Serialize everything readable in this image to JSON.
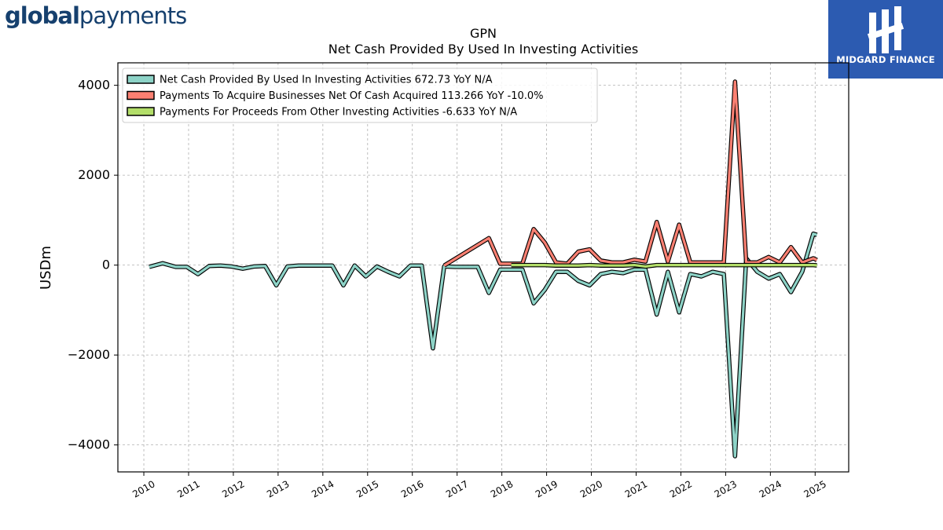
{
  "branding": {
    "left_logo_bold": "global",
    "left_logo_light": "payments",
    "right_logo_text": "MIDGARD FINANCE",
    "right_logo_icon": "midgard-finance-logo-icon"
  },
  "chart_data": {
    "type": "line",
    "title": "GPN",
    "subtitle": "Net Cash Provided By Used In Investing Activities",
    "ylabel": "USDm",
    "xlabel": "",
    "ylim": [
      -4600,
      4500
    ],
    "xlim": [
      2009.42,
      2025.75
    ],
    "yticks": [
      -4000,
      -2000,
      0,
      2000,
      4000
    ],
    "xticks": [
      2010,
      2011,
      2012,
      2013,
      2014,
      2015,
      2016,
      2017,
      2018,
      2019,
      2020,
      2021,
      2022,
      2023,
      2024,
      2025
    ],
    "grid": true,
    "legend_position": "top-left",
    "series": [
      {
        "name": "Net Cash Provided By Used In Investing Activities  672.73 YoY N/A",
        "color": "#8dd3c7",
        "points": [
          [
            2010.12,
            -40
          ],
          [
            2010.42,
            40
          ],
          [
            2010.71,
            -40
          ],
          [
            2010.96,
            -40
          ],
          [
            2011.21,
            -200
          ],
          [
            2011.46,
            -20
          ],
          [
            2011.71,
            -10
          ],
          [
            2011.96,
            -30
          ],
          [
            2012.21,
            -80
          ],
          [
            2012.46,
            -30
          ],
          [
            2012.71,
            -20
          ],
          [
            2012.96,
            -450
          ],
          [
            2013.21,
            -30
          ],
          [
            2013.46,
            -10
          ],
          [
            2013.71,
            -10
          ],
          [
            2013.96,
            -10
          ],
          [
            2014.21,
            -10
          ],
          [
            2014.46,
            -450
          ],
          [
            2014.71,
            -10
          ],
          [
            2014.96,
            -250
          ],
          [
            2015.21,
            -30
          ],
          [
            2015.46,
            -150
          ],
          [
            2015.71,
            -250
          ],
          [
            2015.96,
            -10
          ],
          [
            2016.21,
            -10
          ],
          [
            2016.46,
            -1850
          ],
          [
            2016.71,
            -30
          ],
          [
            2016.96,
            -40
          ],
          [
            2017.21,
            -40
          ],
          [
            2017.46,
            -40
          ],
          [
            2017.71,
            -620
          ],
          [
            2017.96,
            -100
          ],
          [
            2018.21,
            -100
          ],
          [
            2018.46,
            -100
          ],
          [
            2018.71,
            -850
          ],
          [
            2018.96,
            -550
          ],
          [
            2019.21,
            -150
          ],
          [
            2019.46,
            -150
          ],
          [
            2019.71,
            -350
          ],
          [
            2019.96,
            -450
          ],
          [
            2020.21,
            -200
          ],
          [
            2020.46,
            -150
          ],
          [
            2020.71,
            -180
          ],
          [
            2020.96,
            -100
          ],
          [
            2021.21,
            -100
          ],
          [
            2021.46,
            -1100
          ],
          [
            2021.71,
            -150
          ],
          [
            2021.96,
            -1050
          ],
          [
            2022.21,
            -200
          ],
          [
            2022.46,
            -250
          ],
          [
            2022.71,
            -150
          ],
          [
            2022.96,
            -200
          ],
          [
            2023.21,
            -4250
          ],
          [
            2023.46,
            150
          ],
          [
            2023.71,
            -150
          ],
          [
            2023.96,
            -300
          ],
          [
            2024.21,
            -200
          ],
          [
            2024.46,
            -600
          ],
          [
            2024.71,
            -150
          ],
          [
            2024.96,
            700
          ],
          [
            2025.04,
            673
          ]
        ]
      },
      {
        "name": "Payments To Acquire Businesses Net Of Cash Acquired  113.266 YoY -10.0%",
        "color": "#fb8072",
        "points": [
          [
            2016.71,
            -10
          ],
          [
            2017.71,
            600
          ],
          [
            2017.96,
            30
          ],
          [
            2018.21,
            30
          ],
          [
            2018.46,
            30
          ],
          [
            2018.71,
            800
          ],
          [
            2018.96,
            500
          ],
          [
            2019.21,
            60
          ],
          [
            2019.46,
            30
          ],
          [
            2019.71,
            300
          ],
          [
            2019.96,
            350
          ],
          [
            2020.21,
            100
          ],
          [
            2020.46,
            60
          ],
          [
            2020.71,
            60
          ],
          [
            2020.96,
            120
          ],
          [
            2021.21,
            80
          ],
          [
            2021.46,
            960
          ],
          [
            2021.71,
            80
          ],
          [
            2021.96,
            900
          ],
          [
            2022.21,
            60
          ],
          [
            2022.46,
            60
          ],
          [
            2022.71,
            60
          ],
          [
            2022.96,
            60
          ],
          [
            2023.21,
            4080
          ],
          [
            2023.46,
            60
          ],
          [
            2023.71,
            60
          ],
          [
            2023.96,
            180
          ],
          [
            2024.21,
            60
          ],
          [
            2024.46,
            400
          ],
          [
            2024.71,
            60
          ],
          [
            2024.96,
            150
          ],
          [
            2025.04,
            113
          ]
        ]
      },
      {
        "name": "Payments For Proceeds From Other Investing Activities  -6.633 YoY N/A",
        "color": "#b3de69",
        "points": [
          [
            2018.21,
            0
          ],
          [
            2018.96,
            0
          ],
          [
            2019.21,
            -10
          ],
          [
            2019.71,
            -10
          ],
          [
            2019.96,
            0
          ],
          [
            2020.21,
            -10
          ],
          [
            2020.46,
            -10
          ],
          [
            2020.71,
            -10
          ],
          [
            2020.96,
            0
          ],
          [
            2021.21,
            -30
          ],
          [
            2021.46,
            0
          ],
          [
            2021.96,
            0
          ],
          [
            2022.46,
            0
          ],
          [
            2022.96,
            0
          ],
          [
            2023.46,
            0
          ],
          [
            2023.96,
            0
          ],
          [
            2024.46,
            0
          ],
          [
            2024.96,
            0
          ],
          [
            2025.04,
            -7
          ]
        ]
      }
    ]
  }
}
